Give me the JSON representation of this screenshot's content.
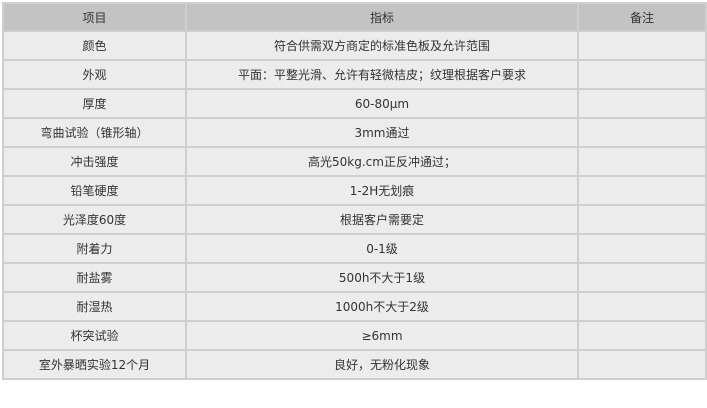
{
  "headers": {
    "item": "项目",
    "spec": "指标",
    "note": "备注"
  },
  "rows": [
    {
      "item": "颜色",
      "spec": "符合供需双方商定的标准色板及允许范围",
      "note": ""
    },
    {
      "item": "外观",
      "spec": "平面：平整光滑、允许有轻微桔皮；纹理根据客户要求",
      "note": ""
    },
    {
      "item": "厚度",
      "spec": "60-80μm",
      "note": ""
    },
    {
      "item": "弯曲试验（锥形轴）",
      "spec": "3mm通过",
      "note": ""
    },
    {
      "item": "冲击强度",
      "spec": "高光50kg.cm正反冲通过；",
      "note": ""
    },
    {
      "item": "铅笔硬度",
      "spec": "1-2H无划痕",
      "note": ""
    },
    {
      "item": "光泽度60度",
      "spec": "根据客户需要定",
      "note": ""
    },
    {
      "item": "附着力",
      "spec": "0-1级",
      "note": ""
    },
    {
      "item": "耐盐雾",
      "spec": "500h不大于1级",
      "note": ""
    },
    {
      "item": "耐湿热",
      "spec": "1000h不大于2级",
      "note": ""
    },
    {
      "item": "杯突试验",
      "spec": "≥6mm",
      "note": ""
    },
    {
      "item": "室外暴晒实验12个月",
      "spec": "良好，无粉化现象",
      "note": ""
    }
  ]
}
